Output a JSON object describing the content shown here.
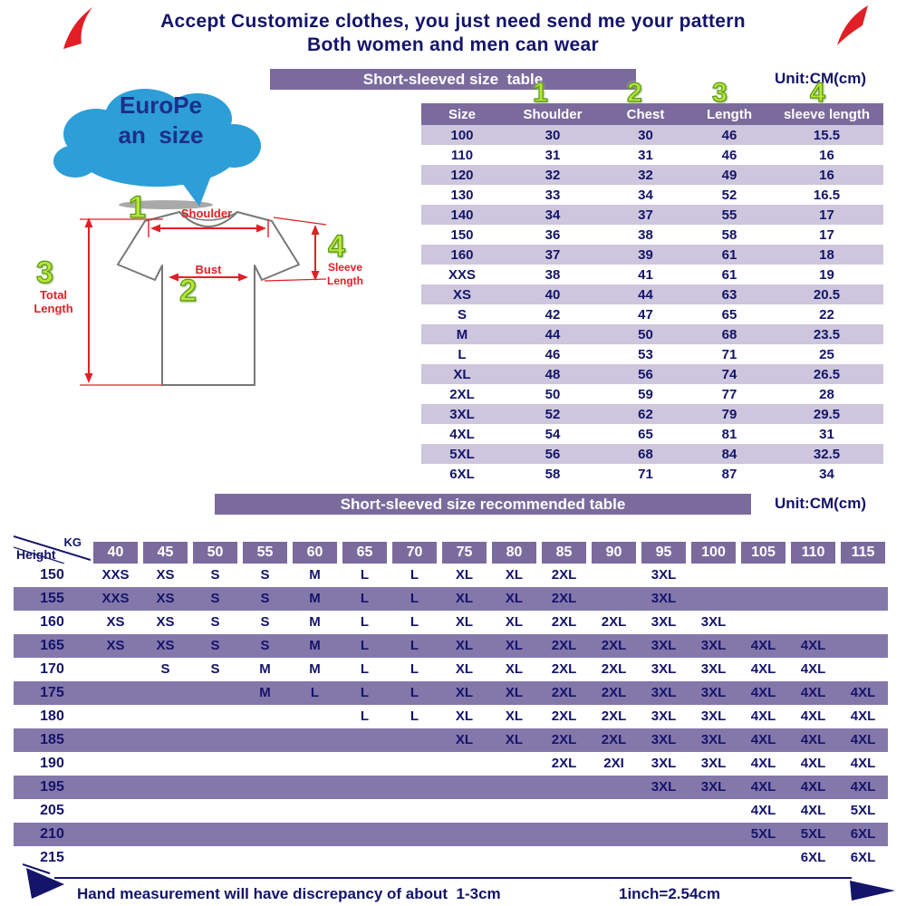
{
  "page": {
    "title_line1": "Accept Customize clothes, you just need send me your pattern",
    "title_line2": "Both women and men can wear"
  },
  "bubble": {
    "line1": "EuroPe",
    "line2": "an  size"
  },
  "diagram": {
    "num_shoulder": "1",
    "num_bust": "2",
    "num_length": "3",
    "num_sleeve": "4",
    "shoulder_label": "Shoulder",
    "bust_label": "Bust",
    "length_label": "Total\nLength",
    "sleeve_label": "Sleeve\nLength"
  },
  "size_table": {
    "banner": "Short-sleeved size  table",
    "unit": "Unit:CM(cm)",
    "col_numbers": [
      "1",
      "2",
      "3",
      "4"
    ],
    "columns": [
      "Size",
      "Shoulder",
      "Chest",
      "Length",
      "sleeve length"
    ],
    "rows": [
      [
        "100",
        "30",
        "30",
        "46",
        "15.5"
      ],
      [
        "110",
        "31",
        "31",
        "46",
        "16"
      ],
      [
        "120",
        "32",
        "32",
        "49",
        "16"
      ],
      [
        "130",
        "33",
        "34",
        "52",
        "16.5"
      ],
      [
        "140",
        "34",
        "37",
        "55",
        "17"
      ],
      [
        "150",
        "36",
        "38",
        "58",
        "17"
      ],
      [
        "160",
        "37",
        "39",
        "61",
        "18"
      ],
      [
        "XXS",
        "38",
        "41",
        "61",
        "19"
      ],
      [
        "XS",
        "40",
        "44",
        "63",
        "20.5"
      ],
      [
        "S",
        "42",
        "47",
        "65",
        "22"
      ],
      [
        "M",
        "44",
        "50",
        "68",
        "23.5"
      ],
      [
        "L",
        "46",
        "53",
        "71",
        "25"
      ],
      [
        "XL",
        "48",
        "56",
        "74",
        "26.5"
      ],
      [
        "2XL",
        "50",
        "59",
        "77",
        "28"
      ],
      [
        "3XL",
        "52",
        "62",
        "79",
        "29.5"
      ],
      [
        "4XL",
        "54",
        "65",
        "81",
        "31"
      ],
      [
        "5XL",
        "56",
        "68",
        "84",
        "32.5"
      ],
      [
        "6XL",
        "58",
        "71",
        "87",
        "34"
      ]
    ]
  },
  "recommend_table": {
    "banner": "Short-sleeved size recommended table",
    "unit": "Unit:CM(cm)",
    "kg_label": "KG",
    "height_label": "Height",
    "weights": [
      "40",
      "45",
      "50",
      "55",
      "60",
      "65",
      "70",
      "75",
      "80",
      "85",
      "90",
      "95",
      "100",
      "105",
      "110",
      "115"
    ],
    "rows": [
      {
        "height": "150",
        "cells": [
          "XXS",
          "XS",
          "S",
          "S",
          "M",
          "L",
          "L",
          "XL",
          "XL",
          "2XL",
          "",
          "3XL",
          "",
          "",
          "",
          ""
        ]
      },
      {
        "height": "155",
        "cells": [
          "XXS",
          "XS",
          "S",
          "S",
          "M",
          "L",
          "L",
          "XL",
          "XL",
          "2XL",
          "",
          "3XL",
          "",
          "",
          "",
          ""
        ]
      },
      {
        "height": "160",
        "cells": [
          "XS",
          "XS",
          "S",
          "S",
          "M",
          "L",
          "L",
          "XL",
          "XL",
          "2XL",
          "2XL",
          "3XL",
          "3XL",
          "",
          "",
          ""
        ]
      },
      {
        "height": "165",
        "cells": [
          "XS",
          "XS",
          "S",
          "S",
          "M",
          "L",
          "L",
          "XL",
          "XL",
          "2XL",
          "2XL",
          "3XL",
          "3XL",
          "4XL",
          "4XL",
          ""
        ]
      },
      {
        "height": "170",
        "cells": [
          "",
          "S",
          "S",
          "M",
          "M",
          "L",
          "L",
          "XL",
          "XL",
          "2XL",
          "2XL",
          "3XL",
          "3XL",
          "4XL",
          "4XL",
          ""
        ]
      },
      {
        "height": "175",
        "cells": [
          "",
          "",
          "",
          "M",
          "L",
          "L",
          "L",
          "XL",
          "XL",
          "2XL",
          "2XL",
          "3XL",
          "3XL",
          "4XL",
          "4XL",
          "4XL"
        ]
      },
      {
        "height": "180",
        "cells": [
          "",
          "",
          "",
          "",
          "",
          "L",
          "L",
          "XL",
          "XL",
          "2XL",
          "2XL",
          "3XL",
          "3XL",
          "4XL",
          "4XL",
          "4XL"
        ]
      },
      {
        "height": "185",
        "cells": [
          "",
          "",
          "",
          "",
          "",
          "",
          "",
          "XL",
          "XL",
          "2XL",
          "2XL",
          "3XL",
          "3XL",
          "4XL",
          "4XL",
          "4XL"
        ]
      },
      {
        "height": "190",
        "cells": [
          "",
          "",
          "",
          "",
          "",
          "",
          "",
          "",
          "",
          "2XL",
          "2XI",
          "3XL",
          "3XL",
          "4XL",
          "4XL",
          "4XL"
        ]
      },
      {
        "height": "195",
        "cells": [
          "",
          "",
          "",
          "",
          "",
          "",
          "",
          "",
          "",
          "",
          "",
          "3XL",
          "3XL",
          "4XL",
          "4XL",
          "4XL"
        ]
      },
      {
        "height": "205",
        "cells": [
          "",
          "",
          "",
          "",
          "",
          "",
          "",
          "",
          "",
          "",
          "",
          "",
          "",
          "4XL",
          "4XL",
          "5XL"
        ]
      },
      {
        "height": "210",
        "cells": [
          "",
          "",
          "",
          "",
          "",
          "",
          "",
          "",
          "",
          "",
          "",
          "",
          "",
          "5XL",
          "5XL",
          "6XL"
        ]
      },
      {
        "height": "215",
        "cells": [
          "",
          "",
          "",
          "",
          "",
          "",
          "",
          "",
          "",
          "",
          "",
          "",
          "",
          "",
          "6XL",
          "6XL"
        ]
      }
    ]
  },
  "footer": {
    "note": "Hand measurement will have discrepancy of about  1-3cm",
    "conversion": "1inch=2.54cm"
  },
  "icons": {
    "top_left": "red-curved-arrow-icon",
    "top_right": "red-curved-arrow-icon",
    "bottom_left": "navy-forward-arrow-icon",
    "bottom_right": "navy-forward-arrow-icon"
  },
  "colors": {
    "banner_purple": "#7b6b9d",
    "row_light": "#cdc6dd",
    "row_mid": "#8478ab",
    "navy": "#14146a",
    "red": "#e21f26",
    "green": "#b9e637",
    "cloud_blue": "#2d9ed7"
  }
}
